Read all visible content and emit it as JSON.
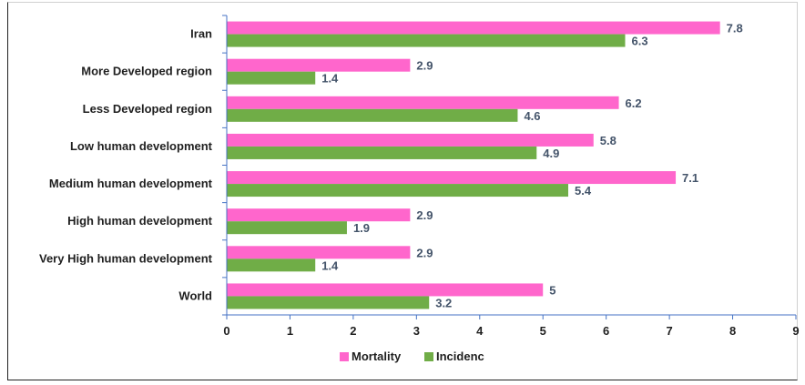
{
  "chart_data": {
    "type": "bar",
    "orientation": "horizontal",
    "categories": [
      "Iran",
      "More Developed region",
      "Less Developed region",
      "Low human development",
      "Medium human development",
      "High human development",
      "Very High human development",
      "World"
    ],
    "series": [
      {
        "name": "Mortality",
        "color": "#ff66cc",
        "values": [
          7.8,
          2.9,
          6.2,
          5.8,
          7.1,
          2.9,
          2.9,
          5
        ]
      },
      {
        "name": "Incidenc",
        "color": "#70ad47",
        "values": [
          6.3,
          1.4,
          4.6,
          4.9,
          5.4,
          1.9,
          1.4,
          3.2
        ]
      }
    ],
    "value_labels": [
      [
        "7.8",
        "2.9",
        "6.2",
        "5.8",
        "7.1",
        "2.9",
        "2.9",
        "5"
      ],
      [
        "6.3",
        "1.4",
        "4.6",
        "4.9",
        "5.4",
        "1.9",
        "1.4",
        "3.2"
      ]
    ],
    "xlim": [
      0,
      9
    ],
    "xticks": [
      "0",
      "1",
      "2",
      "3",
      "4",
      "5",
      "6",
      "7",
      "8",
      "9"
    ],
    "grid": false,
    "legend": "bottom"
  }
}
